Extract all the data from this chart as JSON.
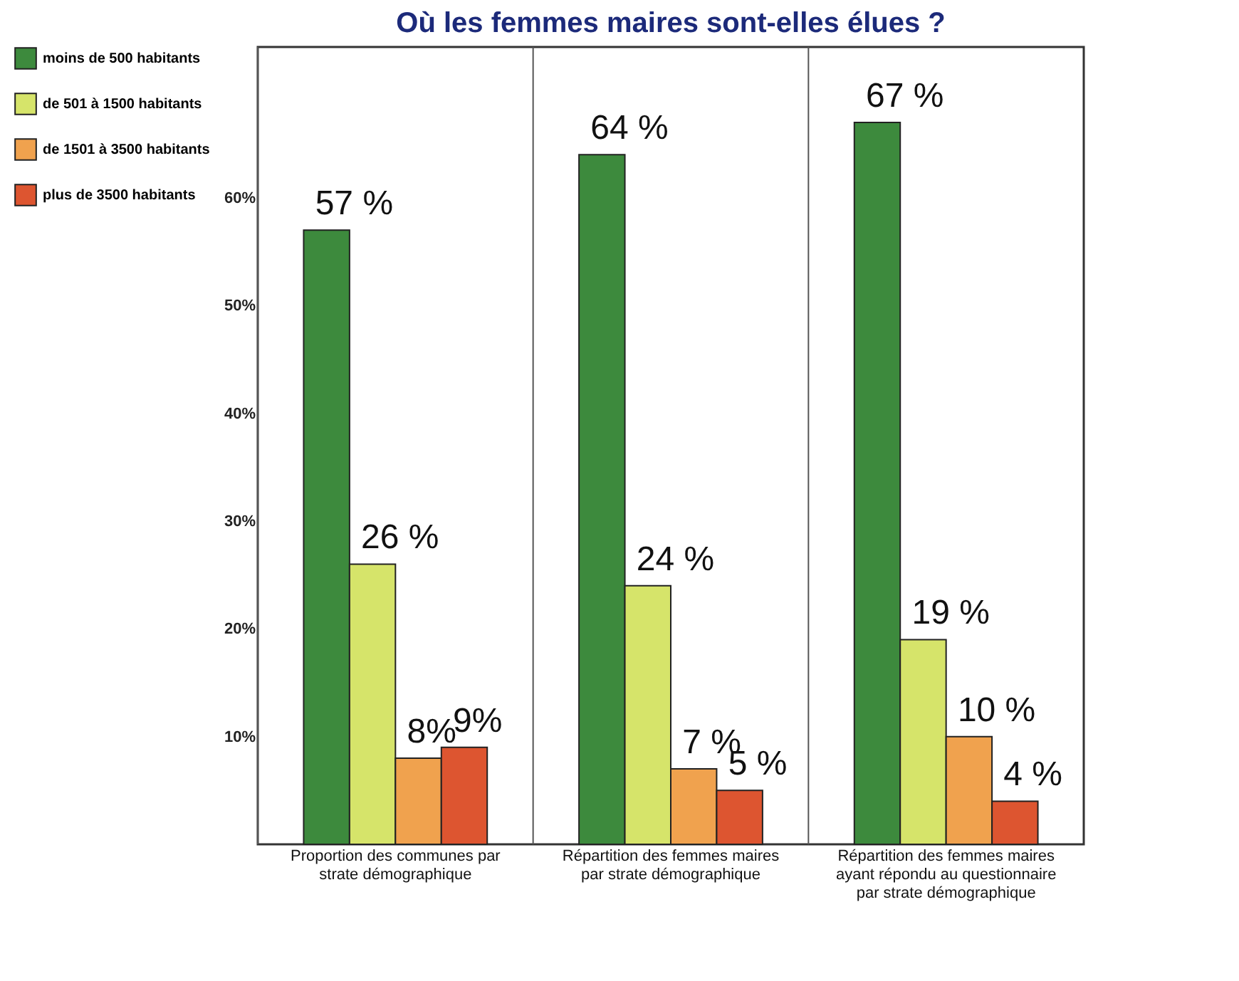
{
  "chart_data": {
    "type": "bar",
    "title": "Où les femmes maires sont-elles élues ?",
    "categories": [
      "Proportion des communes par strate démographique",
      "Répartition des femmes maires par strate démographique",
      "Répartition des femmes maires ayant répondu au questionnaire par strate démographique"
    ],
    "series": [
      {
        "name": "moins de 500 habitants",
        "color": "#3d8a3d",
        "values": [
          57,
          64,
          67
        ],
        "value_labels": [
          "57 %",
          "64 %",
          "67 %"
        ]
      },
      {
        "name": "de 501 à 1500 habitants",
        "color": "#d6e46a",
        "values": [
          26,
          24,
          19
        ],
        "value_labels": [
          "26 %",
          "24 %",
          "19 %"
        ]
      },
      {
        "name": "de 1501 à 3500 habitants",
        "color": "#f0a24e",
        "values": [
          8,
          7,
          10
        ],
        "value_labels": [
          "8%",
          "7 %",
          "10 %"
        ]
      },
      {
        "name": "plus de 3500 habitants",
        "color": "#dd5530",
        "values": [
          9,
          5,
          4
        ],
        "value_labels": [
          "9%",
          "5 %",
          "4 %"
        ]
      }
    ],
    "ylim": [
      0,
      74
    ],
    "yticks": [
      {
        "value": 10,
        "label": "10%"
      },
      {
        "value": 20,
        "label": "20%"
      },
      {
        "value": 30,
        "label": "30%"
      },
      {
        "value": 40,
        "label": "40%"
      },
      {
        "value": 50,
        "label": "50%"
      },
      {
        "value": 60,
        "label": "60%"
      }
    ],
    "grid": "x",
    "legend": "top left"
  }
}
